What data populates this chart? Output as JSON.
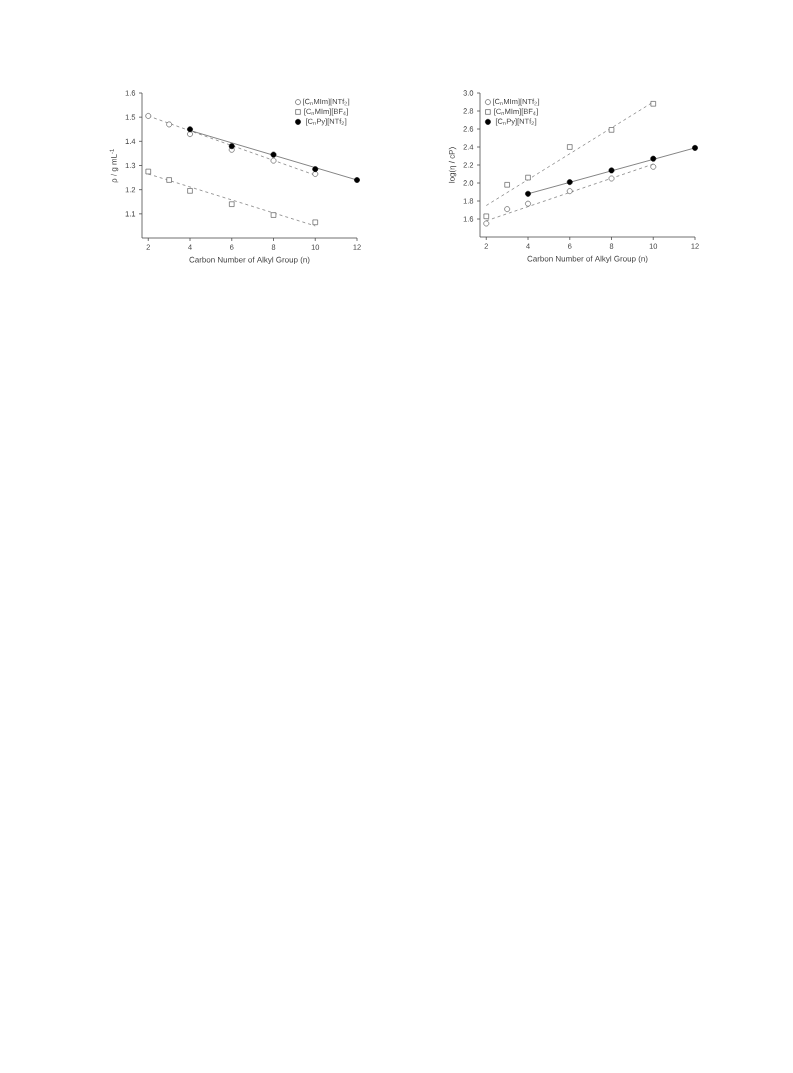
{
  "chart_data": [
    {
      "type": "scatter",
      "xlabel": "Carbon Number of Alkyl Group (n)",
      "ylabel": "ρ / g mL$^{-1}$",
      "xlim": [
        1.7,
        12
      ],
      "ylim": [
        1.0,
        1.6
      ],
      "xticks": [
        2,
        4,
        6,
        8,
        10,
        12
      ],
      "yticks": [
        1.1,
        1.2,
        1.3,
        1.4,
        1.5,
        1.6
      ],
      "legend": "top right",
      "grid": false,
      "series": [
        {
          "type": "line",
          "x": [
            2,
            10
          ],
          "values": [
            1.505,
            1.26
          ],
          "color": "#555555",
          "marker": "none",
          "line_style": "dashed"
        },
        {
          "type": "line",
          "x": [
            2,
            10
          ],
          "values": [
            1.265,
            1.05
          ],
          "color": "#555555",
          "marker": "none",
          "line_style": "dashed"
        },
        {
          "type": "line",
          "x": [
            4,
            12
          ],
          "values": [
            1.445,
            1.24
          ],
          "color": "#333333",
          "marker": "none",
          "line_style": "solid"
        },
        {
          "type": "scatter",
          "name": "[C$_{n}$MIm][NTf$_{2}$]",
          "x": [
            2,
            3,
            4,
            6,
            8,
            10
          ],
          "values": [
            1.505,
            1.47,
            1.43,
            1.365,
            1.32,
            1.265
          ],
          "color": "#444444",
          "marker": "circle"
        },
        {
          "type": "scatter",
          "name": "[C$_{n}$MIm][BF$_{4}$]",
          "x": [
            2,
            3,
            4,
            6,
            8,
            10
          ],
          "values": [
            1.275,
            1.24,
            1.195,
            1.14,
            1.095,
            1.065
          ],
          "color": "#444444",
          "marker": "square"
        },
        {
          "name": "[C$_{n}$Py][NTf$_{2}$]",
          "x": [
            4,
            6,
            8,
            10,
            12
          ],
          "values": [
            1.45,
            1.38,
            1.345,
            1.285,
            1.24
          ],
          "color": "#000000",
          "marker": "circle"
        }
      ]
    },
    {
      "type": "scatter",
      "xlabel": "Carbon Number of Alkyl Group (n)",
      "ylabel": "log(η / cP)",
      "xlim": [
        1.7,
        12
      ],
      "ylim": [
        1.4,
        3.0
      ],
      "xticks": [
        2,
        4,
        6,
        8,
        10,
        12
      ],
      "yticks": [
        1.6,
        1.8,
        {
          "value": 2.0,
          "label": "2.0"
        },
        2.2,
        2.4,
        2.6,
        2.8,
        {
          "value": 3.0,
          "label": "3.0"
        }
      ],
      "legend": "top left",
      "grid": false,
      "series": [
        {
          "type": "line",
          "x": [
            2,
            10
          ],
          "values": [
            1.58,
            2.21
          ],
          "color": "#555555",
          "marker": "none",
          "line_style": "dashed"
        },
        {
          "type": "line",
          "x": [
            2,
            10
          ],
          "values": [
            1.75,
            2.9
          ],
          "color": "#555555",
          "marker": "none",
          "line_style": "dashed"
        },
        {
          "type": "line",
          "x": [
            4,
            12
          ],
          "values": [
            1.88,
            2.39
          ],
          "color": "#333333",
          "marker": "none",
          "line_style": "solid"
        },
        {
          "type": "scatter",
          "name": "[C$_{n}$MIm][NTf$_{2}$]",
          "x": [
            2,
            3,
            4,
            6,
            8,
            10
          ],
          "values": [
            1.55,
            1.71,
            1.77,
            1.91,
            2.05,
            2.18
          ],
          "color": "#444444",
          "marker": "circle"
        },
        {
          "type": "scatter",
          "name": "[C$_{n}$MIm][BF$_{4}$]",
          "x": [
            2,
            3,
            4,
            6,
            8,
            10
          ],
          "values": [
            1.63,
            1.98,
            2.06,
            2.4,
            2.59,
            2.88
          ],
          "color": "#444444",
          "marker": "square"
        },
        {
          "name": "[C$_{n}$Py][NTf$_{2}$]",
          "x": [
            4,
            6,
            8,
            10,
            12
          ],
          "values": [
            1.88,
            2.01,
            2.14,
            2.27,
            2.39
          ],
          "color": "#000000",
          "marker": "circle"
        }
      ]
    }
  ]
}
